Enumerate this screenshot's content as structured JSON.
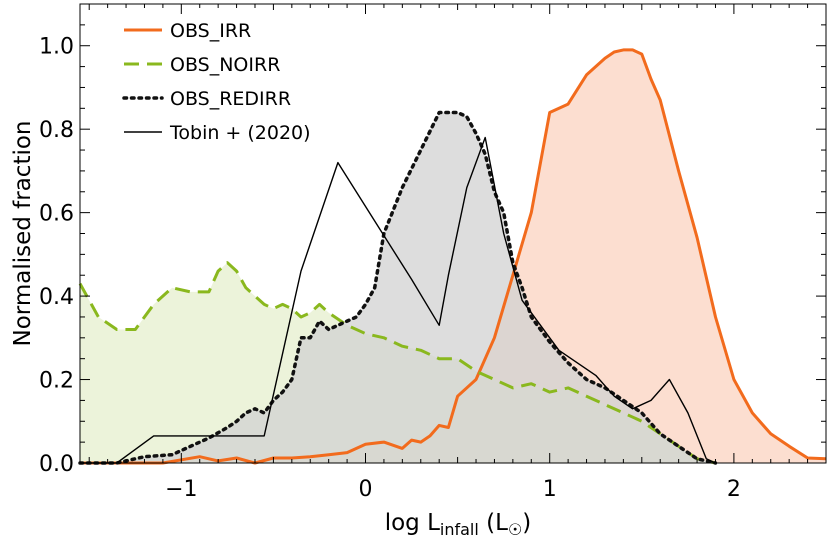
{
  "chart_data": {
    "type": "area",
    "xlabel": "log L",
    "xlabel_sub": "infall",
    "xlabel_unit": " (L",
    "xlabel_unit_end": ")",
    "ylabel": "Normalised fraction",
    "xlim": [
      -1.55,
      2.5
    ],
    "ylim": [
      0,
      1.1
    ],
    "x_ticks": [
      -1,
      0,
      1,
      2
    ],
    "x_tick_labels": [
      "−1",
      "0",
      "1",
      "2"
    ],
    "y_ticks": [
      0.0,
      0.2,
      0.4,
      0.6,
      0.8,
      1.0
    ],
    "y_tick_labels": [
      "0.0",
      "0.2",
      "0.4",
      "0.6",
      "0.8",
      "1.0"
    ],
    "grid": false,
    "legend_position": "top-left",
    "series": [
      {
        "name": "OBS_IRR",
        "color": "#f26b1d",
        "fill": "#fbd3c0",
        "style": "solid",
        "x": [
          -1.55,
          -1.3,
          -1.1,
          -0.9,
          -0.8,
          -0.7,
          -0.6,
          -0.5,
          -0.4,
          -0.3,
          -0.2,
          -0.1,
          0.0,
          0.1,
          0.2,
          0.25,
          0.3,
          0.35,
          0.4,
          0.45,
          0.5,
          0.6,
          0.7,
          0.8,
          0.9,
          1.0,
          1.1,
          1.2,
          1.3,
          1.35,
          1.4,
          1.45,
          1.5,
          1.55,
          1.6,
          1.7,
          1.8,
          1.9,
          2.0,
          2.1,
          2.2,
          2.3,
          2.4,
          2.5
        ],
        "y": [
          0.0,
          0.0,
          0.0,
          0.015,
          0.005,
          0.012,
          0.0,
          0.012,
          0.012,
          0.015,
          0.02,
          0.025,
          0.045,
          0.05,
          0.035,
          0.055,
          0.05,
          0.065,
          0.09,
          0.085,
          0.16,
          0.2,
          0.3,
          0.45,
          0.6,
          0.84,
          0.86,
          0.93,
          0.97,
          0.985,
          0.99,
          0.99,
          0.98,
          0.92,
          0.87,
          0.7,
          0.54,
          0.35,
          0.2,
          0.12,
          0.07,
          0.04,
          0.012,
          0.01
        ]
      },
      {
        "name": "OBS_NOIRR",
        "color": "#8ab81e",
        "fill": "#e6efcd",
        "style": "dashed",
        "x": [
          -1.55,
          -1.45,
          -1.35,
          -1.25,
          -1.15,
          -1.05,
          -0.95,
          -0.85,
          -0.8,
          -0.75,
          -0.7,
          -0.65,
          -0.6,
          -0.55,
          -0.5,
          -0.45,
          -0.4,
          -0.35,
          -0.3,
          -0.25,
          -0.2,
          -0.1,
          0.0,
          0.1,
          0.2,
          0.3,
          0.4,
          0.5,
          0.6,
          0.7,
          0.8,
          0.9,
          1.0,
          1.1,
          1.2,
          1.3,
          1.4,
          1.5,
          1.6,
          1.7,
          1.8,
          1.9
        ],
        "y": [
          0.43,
          0.35,
          0.32,
          0.32,
          0.38,
          0.42,
          0.41,
          0.41,
          0.46,
          0.48,
          0.46,
          0.42,
          0.4,
          0.38,
          0.37,
          0.38,
          0.37,
          0.35,
          0.36,
          0.38,
          0.36,
          0.33,
          0.31,
          0.3,
          0.28,
          0.27,
          0.25,
          0.25,
          0.22,
          0.2,
          0.18,
          0.19,
          0.17,
          0.18,
          0.16,
          0.14,
          0.12,
          0.1,
          0.07,
          0.04,
          0.01,
          0.0
        ]
      },
      {
        "name": "OBS_REDIRR",
        "color": "#111111",
        "fill": "#d2d2d2",
        "style": "dotted",
        "x": [
          -1.55,
          -1.45,
          -1.35,
          -1.2,
          -1.05,
          -0.95,
          -0.85,
          -0.75,
          -0.7,
          -0.65,
          -0.6,
          -0.55,
          -0.5,
          -0.45,
          -0.4,
          -0.35,
          -0.3,
          -0.25,
          -0.2,
          -0.15,
          -0.1,
          -0.05,
          0.0,
          0.05,
          0.1,
          0.2,
          0.3,
          0.4,
          0.5,
          0.55,
          0.6,
          0.65,
          0.7,
          0.75,
          0.8,
          0.85,
          0.9,
          1.0,
          1.1,
          1.2,
          1.3,
          1.4,
          1.5,
          1.6,
          1.7,
          1.8,
          1.9
        ],
        "y": [
          0.0,
          0.0,
          0.0,
          0.015,
          0.02,
          0.04,
          0.06,
          0.085,
          0.1,
          0.12,
          0.13,
          0.12,
          0.15,
          0.17,
          0.2,
          0.3,
          0.3,
          0.34,
          0.32,
          0.33,
          0.34,
          0.35,
          0.38,
          0.42,
          0.55,
          0.66,
          0.75,
          0.84,
          0.84,
          0.83,
          0.79,
          0.74,
          0.65,
          0.6,
          0.48,
          0.42,
          0.35,
          0.29,
          0.24,
          0.2,
          0.18,
          0.15,
          0.12,
          0.07,
          0.04,
          0.01,
          0.0
        ]
      },
      {
        "name": "Tobin + (2020)",
        "color": "#000000",
        "fill": "none",
        "style": "solid",
        "x": [
          -1.55,
          -1.35,
          -1.15,
          -0.95,
          -0.75,
          -0.55,
          -0.35,
          -0.15,
          0.05,
          0.25,
          0.4,
          0.45,
          0.55,
          0.65,
          0.75,
          0.85,
          0.95,
          1.05,
          1.25,
          1.35,
          1.45,
          1.55,
          1.65,
          1.75,
          1.85,
          1.9
        ],
        "y": [
          0.0,
          0.0,
          0.065,
          0.065,
          0.065,
          0.065,
          0.46,
          0.72,
          0.58,
          0.44,
          0.33,
          0.45,
          0.66,
          0.78,
          0.55,
          0.39,
          0.33,
          0.27,
          0.21,
          0.16,
          0.13,
          0.15,
          0.2,
          0.12,
          0.01,
          0.0
        ]
      }
    ]
  }
}
